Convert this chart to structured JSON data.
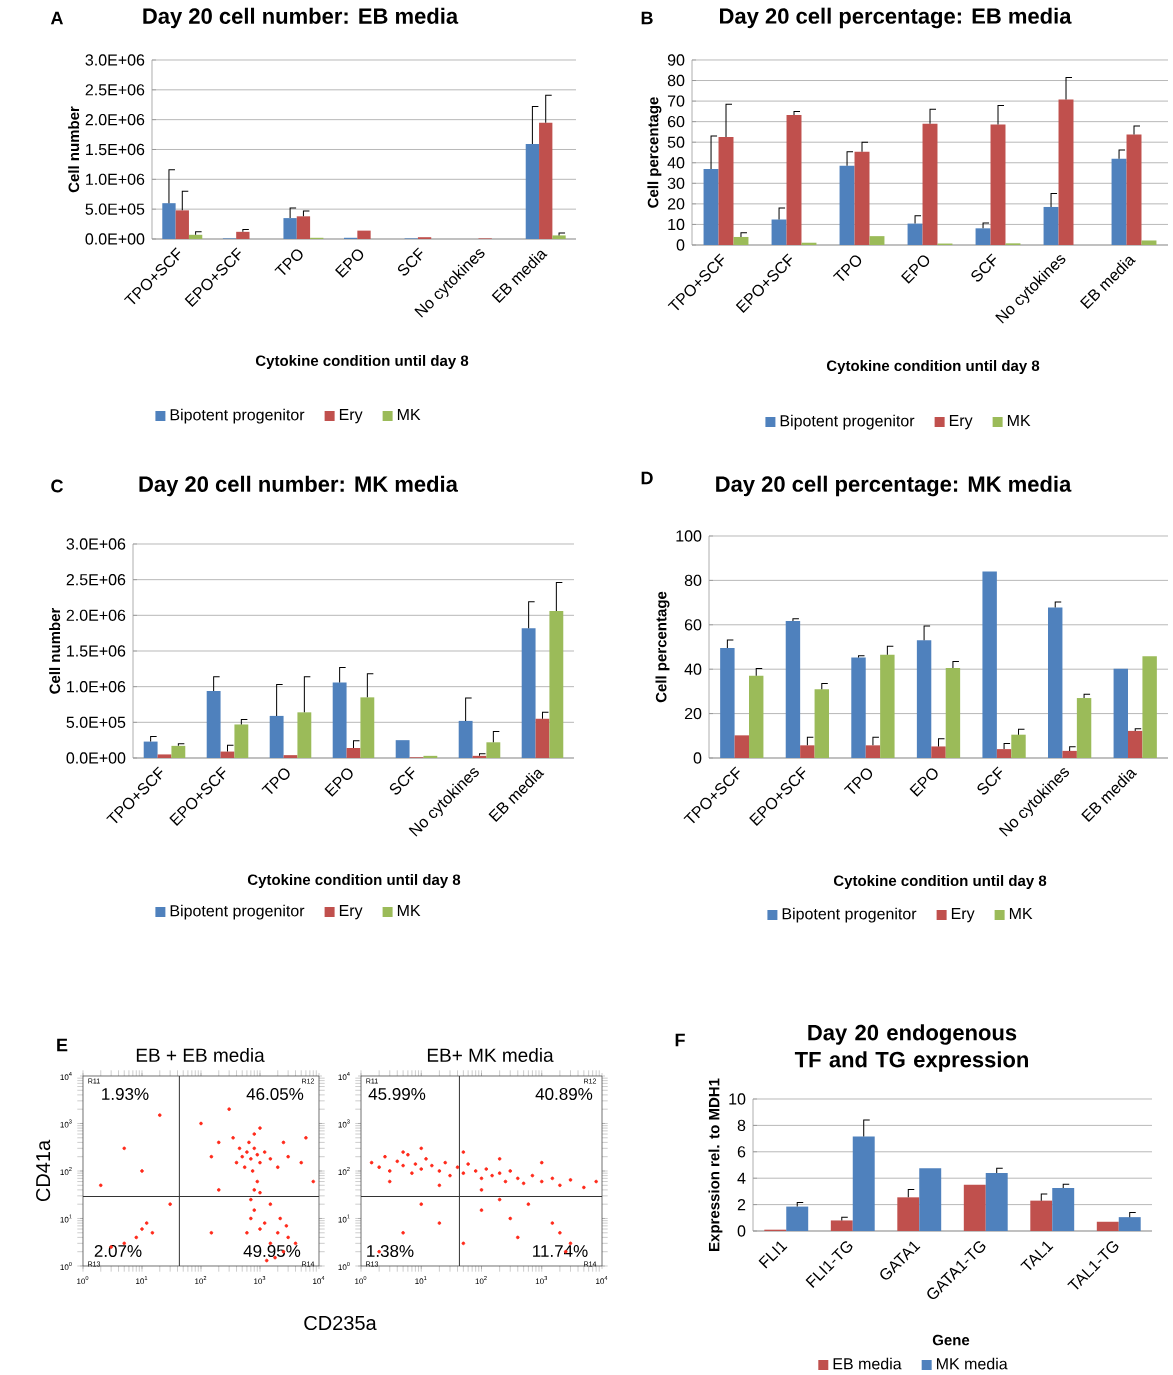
{
  "chart_data": [
    {
      "type": "bar",
      "title": "Day 20 cell number: EB media",
      "xlabel": "Cytokine condition until day 8",
      "ylabel": "Cell number",
      "annotations": [
        "A"
      ],
      "categories": [
        "TPO+SCF",
        "EPO+SCF",
        "TPO",
        "EPO",
        "SCF",
        "No cytokines",
        "EB media"
      ],
      "series": [
        {
          "name": "Bipotent progenitor",
          "color": "#4f81bd",
          "values": [
            600000,
            10000,
            350000,
            20000,
            10000,
            0,
            1590000
          ],
          "errors": [
            560000,
            null,
            170000,
            null,
            null,
            null,
            630000
          ]
        },
        {
          "name": "Ery",
          "color": "#c0504d",
          "values": [
            480000,
            120000,
            380000,
            140000,
            30000,
            10000,
            1950000
          ],
          "errors": [
            320000,
            40000,
            90000,
            null,
            null,
            null,
            460000
          ]
        },
        {
          "name": "MK",
          "color": "#9bbb59",
          "values": [
            70000,
            0,
            20000,
            0,
            0,
            0,
            60000
          ],
          "errors": [
            50000,
            null,
            null,
            null,
            null,
            null,
            40000
          ]
        }
      ],
      "ylim": [
        0,
        3000000
      ],
      "yticks": [
        {
          "value": 0,
          "label": "0.0E+00"
        },
        {
          "value": 500000,
          "label": "5.0E+05"
        },
        {
          "value": 1000000,
          "label": "1.0E+06"
        },
        {
          "value": 1500000,
          "label": "1.5E+06"
        },
        {
          "value": 2000000,
          "label": "2.0E+06"
        },
        {
          "value": 2500000,
          "label": "2.5E+06"
        },
        {
          "value": 3000000,
          "label": "3.0E+06"
        }
      ],
      "grid": "y",
      "legend": "bottom"
    },
    {
      "type": "bar",
      "title": "Day 20 cell percentage: EB media",
      "xlabel": "Cytokine condition until day 8",
      "ylabel": "Cell percentage",
      "annotations": [
        "B"
      ],
      "categories": [
        "TPO+SCF",
        "EPO+SCF",
        "TPO",
        "EPO",
        "SCF",
        "No cytokines",
        "EB media"
      ],
      "series": [
        {
          "name": "Bipotent progenitor",
          "color": "#4f81bd",
          "values": [
            37,
            12.4,
            38.6,
            10.4,
            8.1,
            18.5,
            42
          ],
          "errors": [
            16,
            5.6,
            6.7,
            3.8,
            2.6,
            6.5,
            4.2
          ]
        },
        {
          "name": "Ery",
          "color": "#c0504d",
          "values": [
            52.5,
            63.2,
            45.3,
            59,
            58.6,
            70.8,
            53.8
          ],
          "errors": [
            16,
            1.7,
            4.7,
            7,
            9.2,
            10.7,
            4.1
          ]
        },
        {
          "name": "MK",
          "color": "#9bbb59",
          "values": [
            3.9,
            1.1,
            4.3,
            0.7,
            0.8,
            0,
            2.2
          ],
          "errors": [
            2,
            null,
            null,
            null,
            null,
            null,
            null
          ]
        }
      ],
      "ylim": [
        0,
        90
      ],
      "yticks": [
        0,
        10,
        20,
        30,
        40,
        50,
        60,
        70,
        80,
        90
      ],
      "grid": "y",
      "legend": "bottom"
    },
    {
      "type": "bar",
      "title": "Day 20 cell number: MK media",
      "xlabel": "Cytokine condition until  day 8",
      "ylabel": "Cell number",
      "annotations": [
        "C"
      ],
      "categories": [
        "TPO+SCF",
        "EPO+SCF",
        "TPO",
        "EPO",
        "SCF",
        "No cytokines",
        "EB media"
      ],
      "series": [
        {
          "name": "Bipotent progenitor",
          "color": "#4f81bd",
          "values": [
            230000,
            940000,
            590000,
            1060000,
            250000,
            520000,
            1820000
          ],
          "errors": [
            70000,
            200000,
            440000,
            210000,
            null,
            320000,
            370000
          ]
        },
        {
          "name": "Ery",
          "color": "#c0504d",
          "values": [
            50000,
            90000,
            40000,
            140000,
            10000,
            30000,
            550000
          ],
          "errors": [
            null,
            90000,
            null,
            100000,
            null,
            30000,
            90000
          ]
        },
        {
          "name": "MK",
          "color": "#9bbb59",
          "values": [
            170000,
            470000,
            640000,
            850000,
            30000,
            220000,
            2060000
          ],
          "errors": [
            30000,
            70000,
            500000,
            330000,
            null,
            150000,
            400000
          ]
        }
      ],
      "ylim": [
        0,
        3000000
      ],
      "yticks": [
        {
          "value": 0,
          "label": "0.0E+00"
        },
        {
          "value": 500000,
          "label": "5.0E+05"
        },
        {
          "value": 1000000,
          "label": "1.0E+06"
        },
        {
          "value": 1500000,
          "label": "1.5E+06"
        },
        {
          "value": 2000000,
          "label": "2.0E+06"
        },
        {
          "value": 2500000,
          "label": "2.5E+06"
        },
        {
          "value": 3000000,
          "label": "3.0E+06"
        }
      ],
      "grid": "y",
      "legend": "bottom"
    },
    {
      "type": "bar",
      "title": "Day 20 cell percentage: MK media",
      "xlabel": "Cytokine condition until day 8",
      "ylabel": "Cell percentage",
      "annotations": [
        "D"
      ],
      "categories": [
        "TPO+SCF",
        "EPO+SCF",
        "TPO",
        "EPO",
        "SCF",
        "No cytokines",
        "EB media"
      ],
      "series": [
        {
          "name": "Bipotent progenitor",
          "color": "#4f81bd",
          "values": [
            49.5,
            61.7,
            45.3,
            53,
            84,
            67.8,
            40.2
          ],
          "errors": [
            3.7,
            1,
            0.7,
            6.5,
            null,
            2.5,
            null
          ]
        },
        {
          "name": "Ery",
          "color": "#c0504d",
          "values": [
            10.2,
            5.7,
            5.7,
            5.2,
            4,
            3.2,
            12.2
          ],
          "errors": [
            null,
            3.6,
            3.6,
            3.5,
            2.5,
            1.9,
            1
          ]
        },
        {
          "name": "MK",
          "color": "#9bbb59",
          "values": [
            37,
            31,
            46.5,
            40.5,
            10.5,
            27,
            45.8
          ],
          "errors": [
            3.3,
            2.6,
            3.8,
            3,
            2.5,
            1.7,
            null
          ]
        }
      ],
      "ylim": [
        0,
        100
      ],
      "yticks": [
        0,
        20,
        40,
        60,
        80,
        100
      ],
      "grid": "y",
      "legend": "bottom"
    },
    {
      "type": "scatter",
      "title": "EB + EB media",
      "xlabel": "CD235a",
      "ylabel": "CD41a",
      "log": "xy",
      "annotations": [
        "E",
        "1.93%",
        "46.05%",
        "2.07%",
        "49.95%",
        "R11",
        "R12",
        "R13",
        "R14"
      ],
      "series": [
        {
          "color": "#ff2a1a",
          "x": [
            400,
            500,
            600,
            700,
            800,
            900,
            1000,
            550,
            650,
            750,
            1200,
            1500,
            2000,
            3000,
            450,
            350,
            800,
            1000,
            200,
            150,
            5000,
            2500,
            1500,
            2000,
            2500,
            1200,
            3000,
            1800,
            1000,
            800,
            700,
            2200,
            4000,
            1500,
            600,
            1300,
            2800,
            800,
            900,
            700,
            1000,
            3,
            5,
            10,
            15,
            8,
            12,
            2,
            5,
            20,
            10,
            30,
            150,
            200,
            100,
            300,
            6000,
            8000
          ],
          "values": [
            150,
            200,
            250,
            180,
            300,
            220,
            150,
            120,
            400,
            100,
            250,
            180,
            120,
            200,
            300,
            500,
            600,
            800,
            400,
            200,
            150,
            400,
            3,
            5,
            2,
            8,
            4,
            1.5,
            6,
            15,
            10,
            10,
            3,
            20,
            5,
            1.3,
            7,
            40,
            60,
            25,
            35,
            2.5,
            3,
            6,
            5,
            4,
            8,
            50,
            300,
            1500,
            100,
            20,
            5,
            40,
            1000,
            2000,
            500,
            60
          ]
        }
      ],
      "xlim": [
        1,
        10000
      ],
      "xticks": [
        {
          "value": 1,
          "label": "10$^{0}$"
        },
        {
          "value": 10,
          "label": "10$^{1}$"
        },
        {
          "value": 100,
          "label": "10$^{2}$"
        },
        {
          "value": 1000,
          "label": "10$^{3}$"
        },
        {
          "value": 10000,
          "label": "10$^{4}$"
        }
      ],
      "ylim": [
        1,
        10000
      ],
      "yticks": [
        {
          "value": 1,
          "label": "10$^{0}$"
        },
        {
          "value": 10,
          "label": "10$^{1}$"
        },
        {
          "value": 100,
          "label": "10$^{2}$"
        },
        {
          "value": 1000,
          "label": "10$^{3}$"
        },
        {
          "value": 10000,
          "label": "10$^{4}$"
        }
      ],
      "ref_lines": [
        {
          "axis": "x",
          "value": 43,
          "color": "#333333"
        },
        {
          "axis": "y",
          "value": 29,
          "color": "#333333"
        }
      ]
    },
    {
      "type": "scatter",
      "title": "EB+ MK media",
      "log": "xy",
      "annotations": [
        "45.99%",
        "40.89%",
        "1.38%",
        "11.74%",
        "R11",
        "R12",
        "R13",
        "R14"
      ],
      "series": [
        {
          "color": "#ff2a1a",
          "x": [
            1.5,
            2,
            2.5,
            3,
            4,
            5,
            6,
            7,
            8,
            10,
            12,
            15,
            20,
            25,
            30,
            40,
            50,
            60,
            80,
            100,
            120,
            150,
            200,
            250,
            300,
            400,
            500,
            700,
            1000,
            1500,
            2000,
            3000,
            5000,
            8000,
            3,
            5,
            10,
            50,
            200,
            1000,
            20,
            100,
            5,
            20,
            100,
            300,
            2000,
            2500,
            3000,
            1500,
            50,
            10,
            400,
            2,
            200,
            600
          ],
          "values": [
            150,
            120,
            200,
            100,
            160,
            130,
            220,
            90,
            140,
            110,
            180,
            130,
            100,
            150,
            80,
            120,
            90,
            140,
            100,
            70,
            110,
            80,
            90,
            60,
            100,
            70,
            55,
            80,
            60,
            70,
            50,
            65,
            45,
            60,
            60,
            250,
            300,
            250,
            180,
            150,
            50,
            40,
            5,
            8,
            15,
            10,
            5,
            2,
            3,
            8,
            3,
            20,
            4,
            2,
            25,
            20
          ]
        }
      ],
      "xlim": [
        1,
        10000
      ],
      "xticks": [
        {
          "value": 1,
          "label": "10$^{0}$"
        },
        {
          "value": 10,
          "label": "10$^{1}$"
        },
        {
          "value": 100,
          "label": "10$^{2}$"
        },
        {
          "value": 1000,
          "label": "10$^{3}$"
        },
        {
          "value": 10000,
          "label": "10$^{4}$"
        }
      ],
      "ylim": [
        1,
        10000
      ],
      "yticks": [
        {
          "value": 1,
          "label": "10$^{0}$"
        },
        {
          "value": 10,
          "label": "10$^{1}$"
        },
        {
          "value": 100,
          "label": "10$^{2}$"
        },
        {
          "value": 1000,
          "label": "10$^{3}$"
        },
        {
          "value": 10000,
          "label": "10$^{4}$"
        }
      ],
      "ref_lines": [
        {
          "axis": "x",
          "value": 43,
          "color": "#333333"
        },
        {
          "axis": "y",
          "value": 29,
          "color": "#333333"
        }
      ]
    },
    {
      "type": "bar",
      "title": "Day 20 endogenous TF and TG expression",
      "xlabel": "Gene",
      "ylabel": "Expression rel. to MDH1",
      "annotations": [
        "F"
      ],
      "categories": [
        "FLI1",
        "FLI1-TG",
        "GATA1",
        "GATA1-TG",
        "TAL1",
        "TAL1-TG"
      ],
      "series": [
        {
          "name": "EB media",
          "color": "#c0504d",
          "values": [
            0.1,
            0.8,
            2.55,
            3.5,
            2.3,
            0.7
          ],
          "errors": [
            null,
            0.25,
            0.6,
            null,
            0.5,
            null
          ]
        },
        {
          "name": "MK media",
          "color": "#4f81bd",
          "values": [
            1.85,
            7.15,
            4.75,
            4.4,
            3.25,
            1.05
          ],
          "errors": [
            0.3,
            1.25,
            null,
            0.35,
            0.3,
            0.35
          ]
        }
      ],
      "ylim": [
        0,
        10
      ],
      "yticks": [
        0,
        2,
        4,
        6,
        8,
        10
      ],
      "grid": "y",
      "legend": "bottom"
    }
  ]
}
